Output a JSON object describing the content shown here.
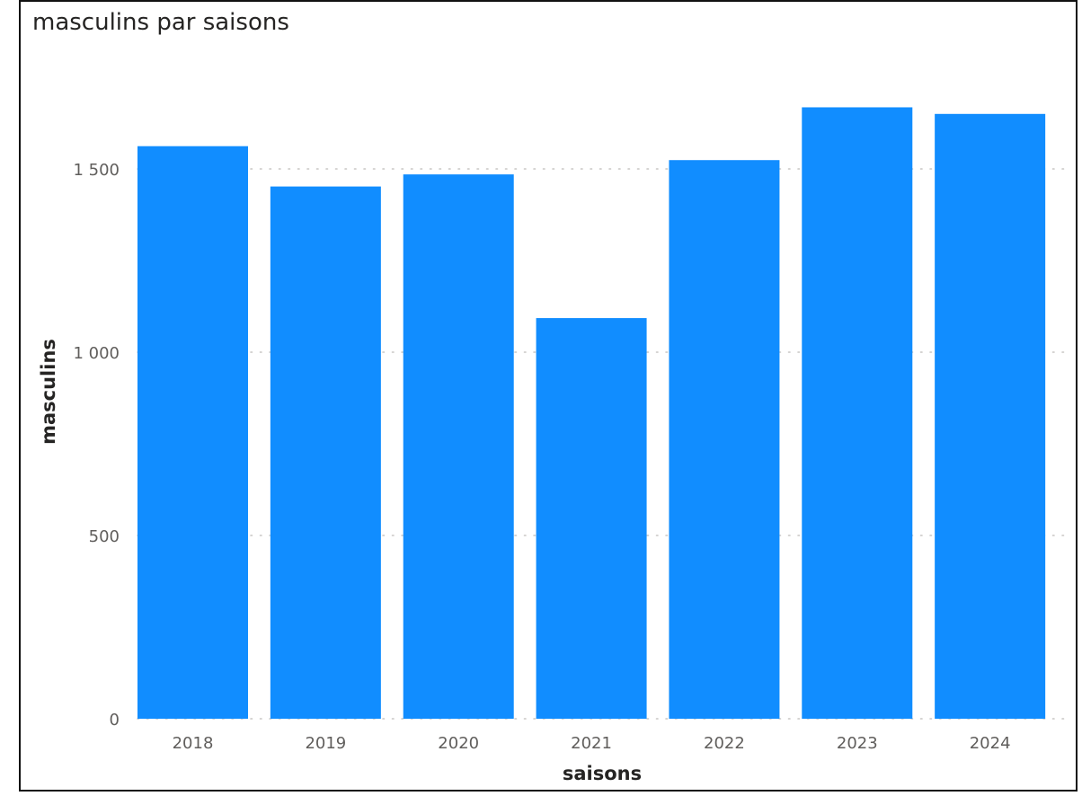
{
  "chart_data": {
    "type": "bar",
    "title": "masculins par saisons",
    "xlabel": "saisons",
    "ylabel": "masculins",
    "categories": [
      "2018",
      "2019",
      "2020",
      "2021",
      "2022",
      "2023",
      "2024"
    ],
    "values": [
      1562,
      1452,
      1485,
      1093,
      1524,
      1668,
      1650
    ],
    "ylim": [
      0,
      1760
    ],
    "yticks": [
      0,
      500,
      1000,
      1500
    ],
    "ytick_labels": [
      "0",
      "500",
      "1 000",
      "1 500"
    ],
    "grid": true,
    "bar_color": "#118DFF"
  }
}
